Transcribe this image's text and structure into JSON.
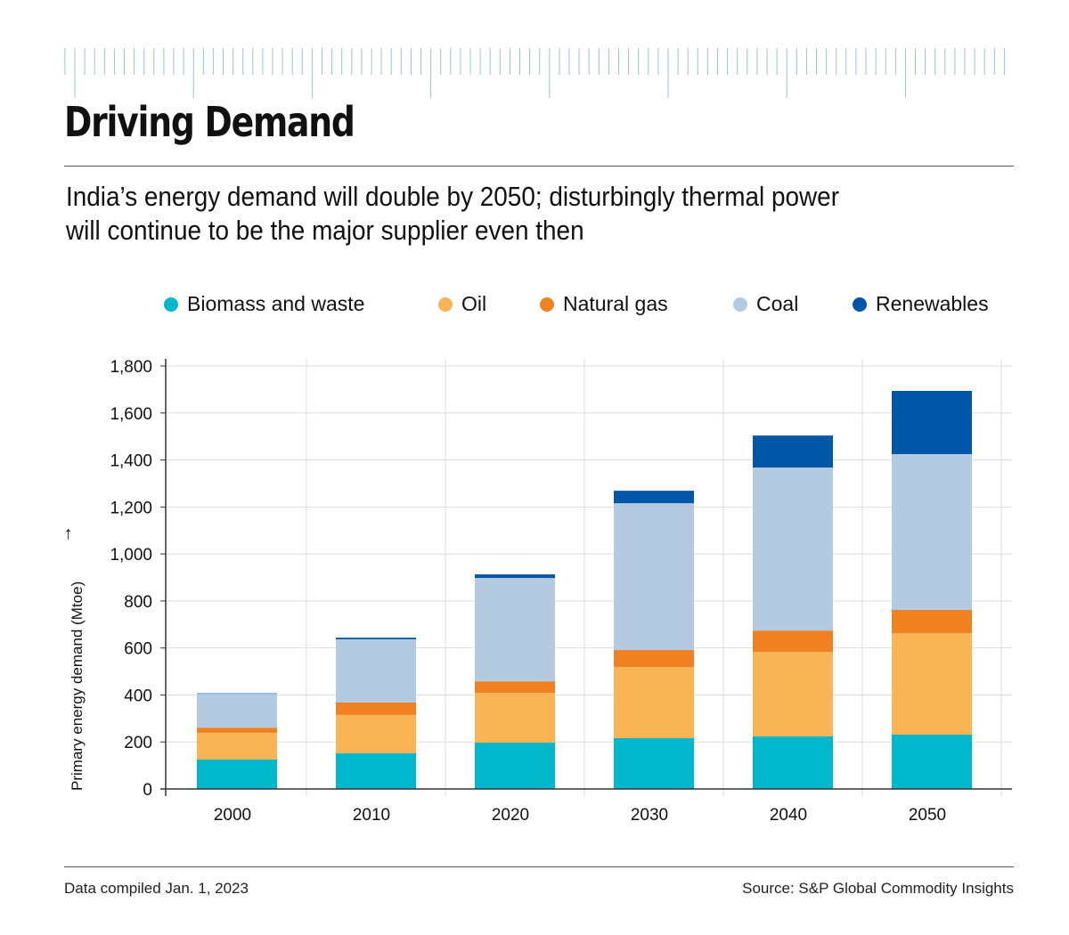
{
  "title": "Driving Demand",
  "subtitle": "India’s energy demand will double by 2050; disturbingly thermal power will continue to be the major supplier even then",
  "footer": {
    "left": "Data compiled Jan. 1, 2023",
    "right": "Source: S&P Global Commodity Insights"
  },
  "chart_data": {
    "type": "bar",
    "stacked": true,
    "categories": [
      "2000",
      "2010",
      "2020",
      "2030",
      "2040",
      "2050"
    ],
    "ylabel": "Primary energy demand (Mtoe)",
    "ylabel_arrow": "→",
    "ylim": [
      0,
      1800
    ],
    "yticks": [
      "0",
      "200",
      "400",
      "600",
      "800",
      "1,000",
      "1,200",
      "1,400",
      "1,600",
      "1,800"
    ],
    "grid": true,
    "legend_position": "top",
    "series": [
      {
        "name": "Biomass and waste",
        "color": "#00b7cb",
        "values": [
          125,
          152,
          197,
          216,
          224,
          231
        ]
      },
      {
        "name": "Oil",
        "color": "#f8b455",
        "values": [
          114,
          163,
          212,
          303,
          359,
          432
        ]
      },
      {
        "name": "Natural gas",
        "color": "#f08121",
        "values": [
          22,
          53,
          49,
          72,
          91,
          99
        ]
      },
      {
        "name": "Coal",
        "color": "#b3cae0",
        "values": [
          144,
          269,
          440,
          625,
          694,
          663
        ]
      },
      {
        "name": "Renewables",
        "color": "#0057a8",
        "values": [
          2,
          7,
          15,
          53,
          136,
          269
        ]
      }
    ]
  }
}
